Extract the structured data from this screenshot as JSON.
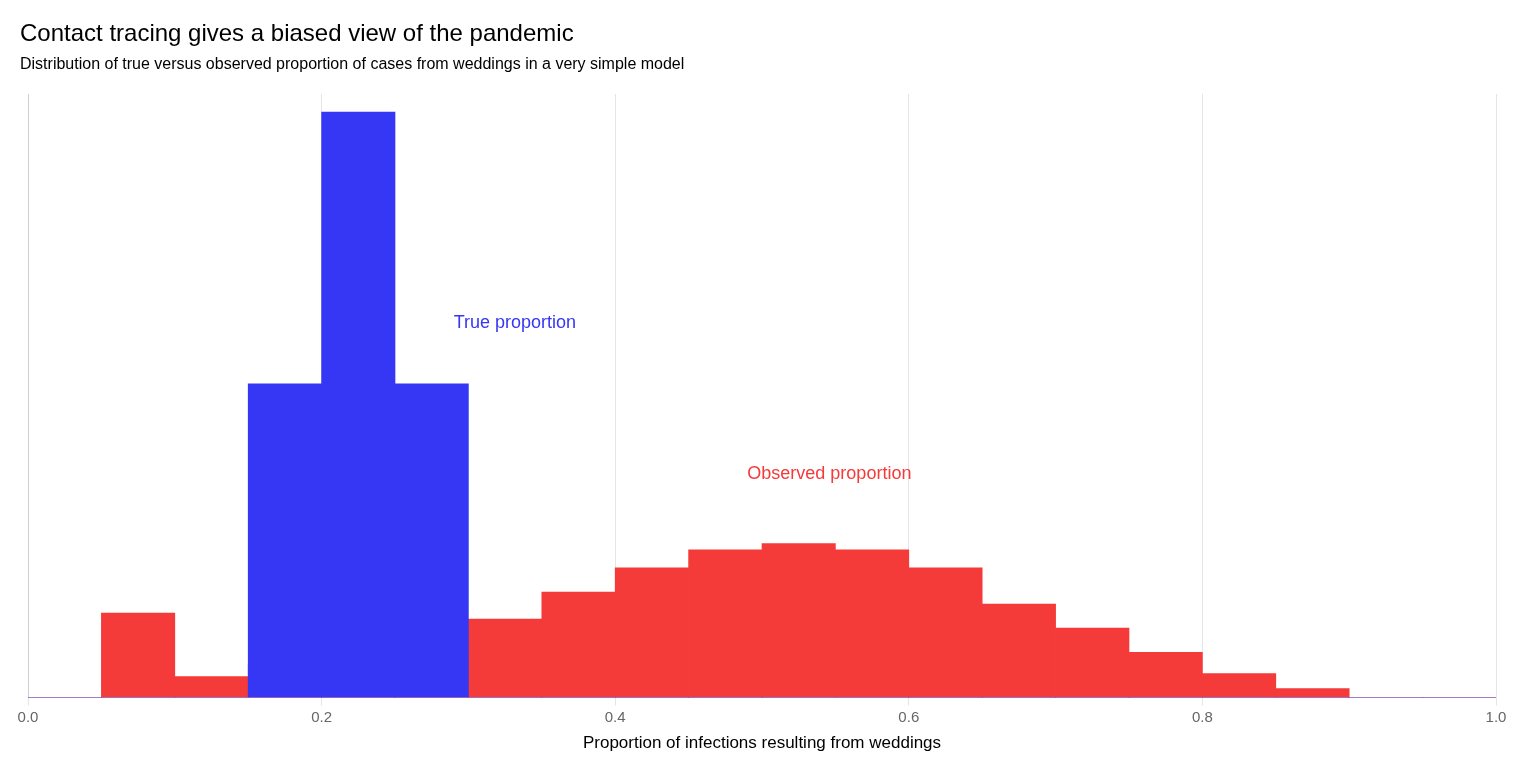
{
  "chart_data": {
    "type": "histogram",
    "title": "Contact tracing gives a biased view of the pandemic",
    "subtitle": "Distribution of true versus observed proportion of cases from weddings in a very simple model",
    "xlabel": "Proportion of infections resulting from weddings",
    "xlim": [
      0.0,
      1.0
    ],
    "ylim": [
      0.0,
      1.0
    ],
    "xticks": [
      {
        "value": 0.0,
        "label": "0.0"
      },
      0.2,
      0.4,
      0.6,
      0.8,
      {
        "value": 1.0,
        "label": "1.0"
      }
    ],
    "grid": true,
    "tick_labels": "x",
    "bins": [
      0.0,
      0.05,
      0.1,
      0.15,
      0.2,
      0.25,
      0.3,
      0.35,
      0.4,
      0.45,
      0.5,
      0.55,
      0.6,
      0.65,
      0.7,
      0.75,
      0.8,
      0.85,
      0.9,
      0.95,
      1.0
    ],
    "series": [
      {
        "color": "#f53a3a",
        "values": [
          0.0,
          0.14,
          0.035,
          0.055,
          0.055,
          0.078,
          0.13,
          0.175,
          0.215,
          0.245,
          0.255,
          0.245,
          0.215,
          0.155,
          0.115,
          0.075,
          0.04,
          0.015,
          0.0,
          0.0
        ]
      },
      {
        "color": "#3636f5",
        "values": [
          0.0,
          0.0,
          0.0,
          0.52,
          0.97,
          0.52,
          0.0,
          0.0,
          0.0,
          0.0,
          0.0,
          0.0,
          0.0,
          0.0,
          0.0,
          0.0,
          0.0,
          0.0,
          0.0,
          0.0
        ]
      }
    ],
    "annotations": [
      {
        "text": "True proportion",
        "x": 0.29,
        "y": 0.62,
        "color": "#3636f5"
      },
      {
        "text": "Observed proportion",
        "x": 0.49,
        "y": 0.37,
        "color": "#f53a3a"
      }
    ]
  }
}
